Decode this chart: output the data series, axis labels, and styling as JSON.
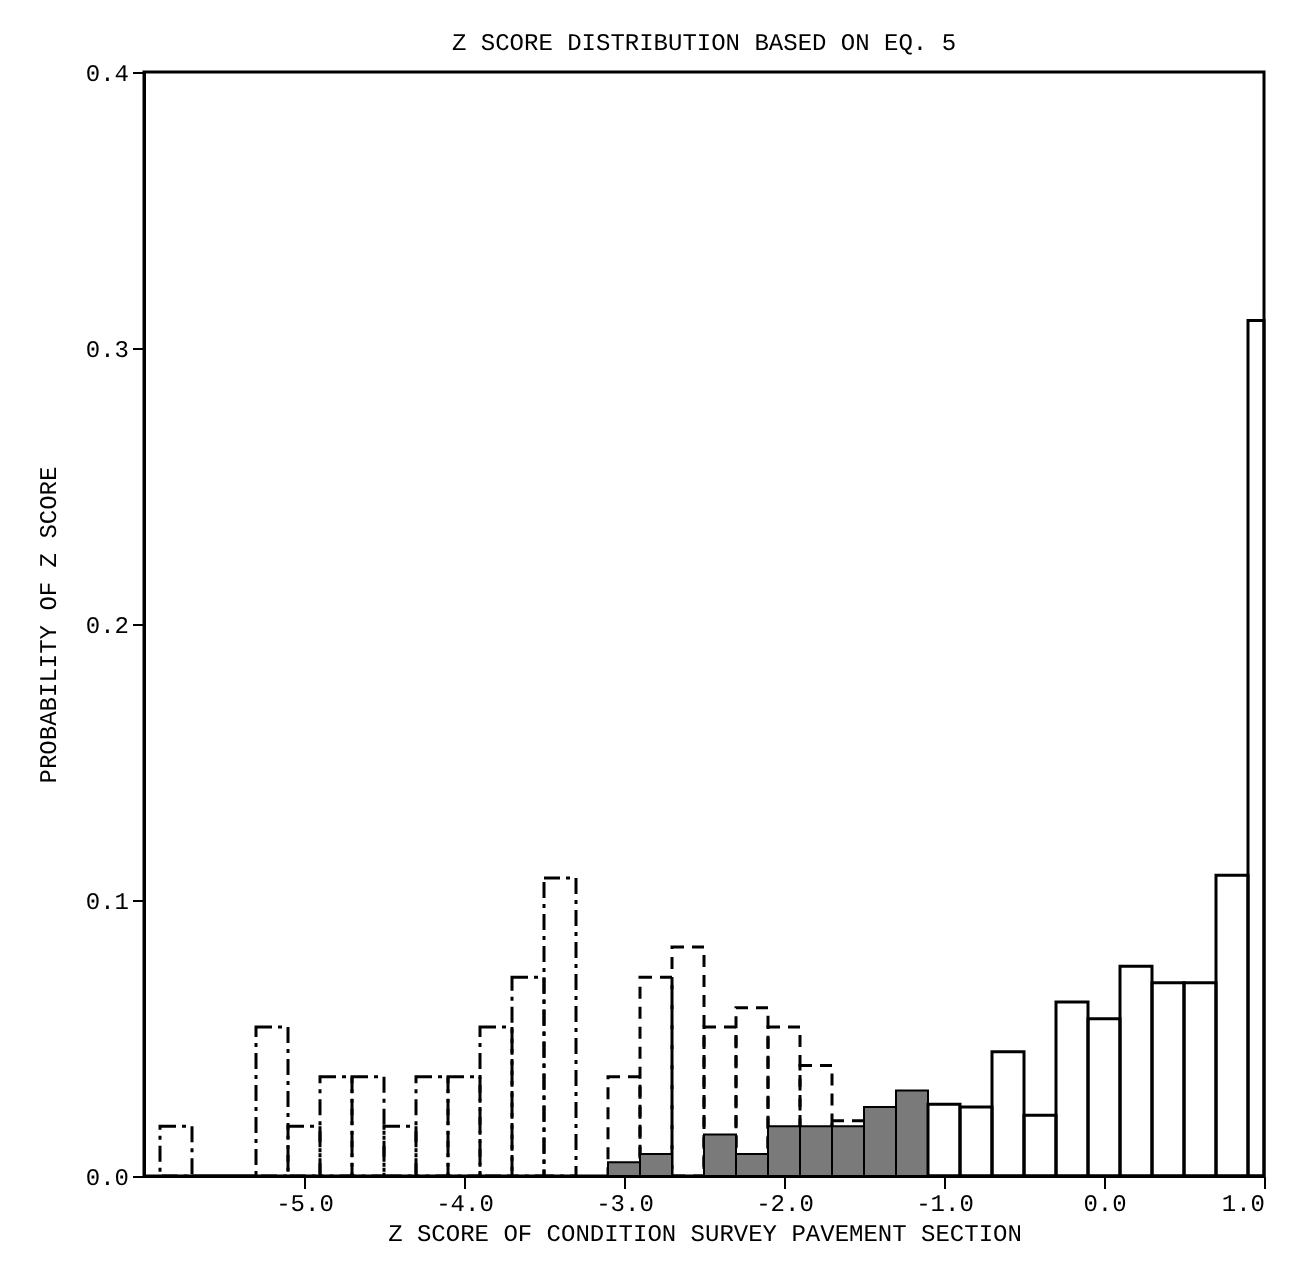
{
  "chart_data": {
    "type": "histogram",
    "title": "Z SCORE DISTRIBUTION BASED ON EQ. 5",
    "xlabel": "Z SCORE OF CONDITION SURVEY PAVEMENT SECTION",
    "ylabel": "PROBABILITY OF Z SCORE",
    "xlim": [
      -6.0,
      1.0
    ],
    "ylim": [
      0,
      0.4
    ],
    "xticks": [
      {
        "value": -5,
        "label": "-5.0"
      },
      {
        "value": -4,
        "label": "-4.0"
      },
      {
        "value": -3,
        "label": "-3.0"
      },
      {
        "value": -2,
        "label": "-2.0"
      },
      {
        "value": -1,
        "label": "-1.0"
      },
      {
        "value": 0,
        "label": "0.0"
      },
      {
        "value": 1,
        "label": "1.0"
      }
    ],
    "yticks": [
      {
        "value": 0,
        "label": "0.0"
      },
      {
        "value": 0.1,
        "label": "0.1"
      },
      {
        "value": 0.2,
        "label": "0.2"
      },
      {
        "value": 0.3,
        "label": "0.3"
      },
      {
        "value": 0.4,
        "label": "0.4"
      }
    ],
    "grid": false,
    "bins": [
      -5.9,
      -5.7,
      -5.5,
      -5.3,
      -5.1,
      -4.9,
      -4.7,
      -4.5,
      -4.3,
      -4.1,
      -3.9,
      -3.7,
      -3.5,
      -3.3,
      -3.1,
      -2.9,
      -2.7,
      -2.5,
      -2.3,
      -2.1,
      -1.9,
      -1.7,
      -1.5,
      -1.3,
      -1.1,
      -0.9,
      -0.7,
      -0.5,
      -0.3,
      -0.1,
      0.1,
      0.3,
      0.5,
      0.7,
      0.9,
      1.0
    ],
    "series": [
      {
        "color": "#000000",
        "line_style": "dashdot",
        "values": [
          0.018,
          0,
          0,
          0.054,
          0.018,
          0.036,
          0.036,
          0.018,
          0.036,
          0.036,
          0.054,
          0.072,
          0.108,
          null,
          null,
          null,
          null,
          null,
          null,
          null,
          null,
          null,
          null,
          null,
          null,
          null,
          null,
          null,
          null,
          null,
          null,
          null,
          null,
          null,
          null
        ]
      },
      {
        "color": "#000000",
        "line_style": "dashed",
        "values": [
          null,
          null,
          null,
          null,
          null,
          null,
          null,
          null,
          null,
          null,
          null,
          null,
          null,
          null,
          0.036,
          0.072,
          0.083,
          0.054,
          0.061,
          0.054,
          0.04,
          0.02,
          null,
          null,
          null,
          null,
          null,
          null,
          null,
          null,
          null,
          null,
          null,
          null,
          null
        ]
      },
      {
        "color": "#7a7a7a",
        "values": [
          null,
          null,
          null,
          null,
          null,
          null,
          null,
          null,
          null,
          null,
          null,
          null,
          null,
          null,
          0.005,
          0.008,
          null,
          0.015,
          0.008,
          0.018,
          0.018,
          0.018,
          0.025,
          0.031,
          null,
          null,
          null,
          null,
          null,
          null,
          null,
          null,
          null,
          null,
          null
        ]
      },
      {
        "color": "#000000",
        "line_style": "solid",
        "values": [
          null,
          null,
          null,
          null,
          null,
          null,
          null,
          null,
          null,
          null,
          null,
          null,
          null,
          null,
          null,
          null,
          null,
          null,
          null,
          null,
          null,
          null,
          null,
          null,
          0.026,
          0.025,
          0.045,
          0.022,
          0.063,
          0.057,
          0.076,
          0.07,
          0.07,
          0.109,
          0.31
        ]
      }
    ]
  }
}
